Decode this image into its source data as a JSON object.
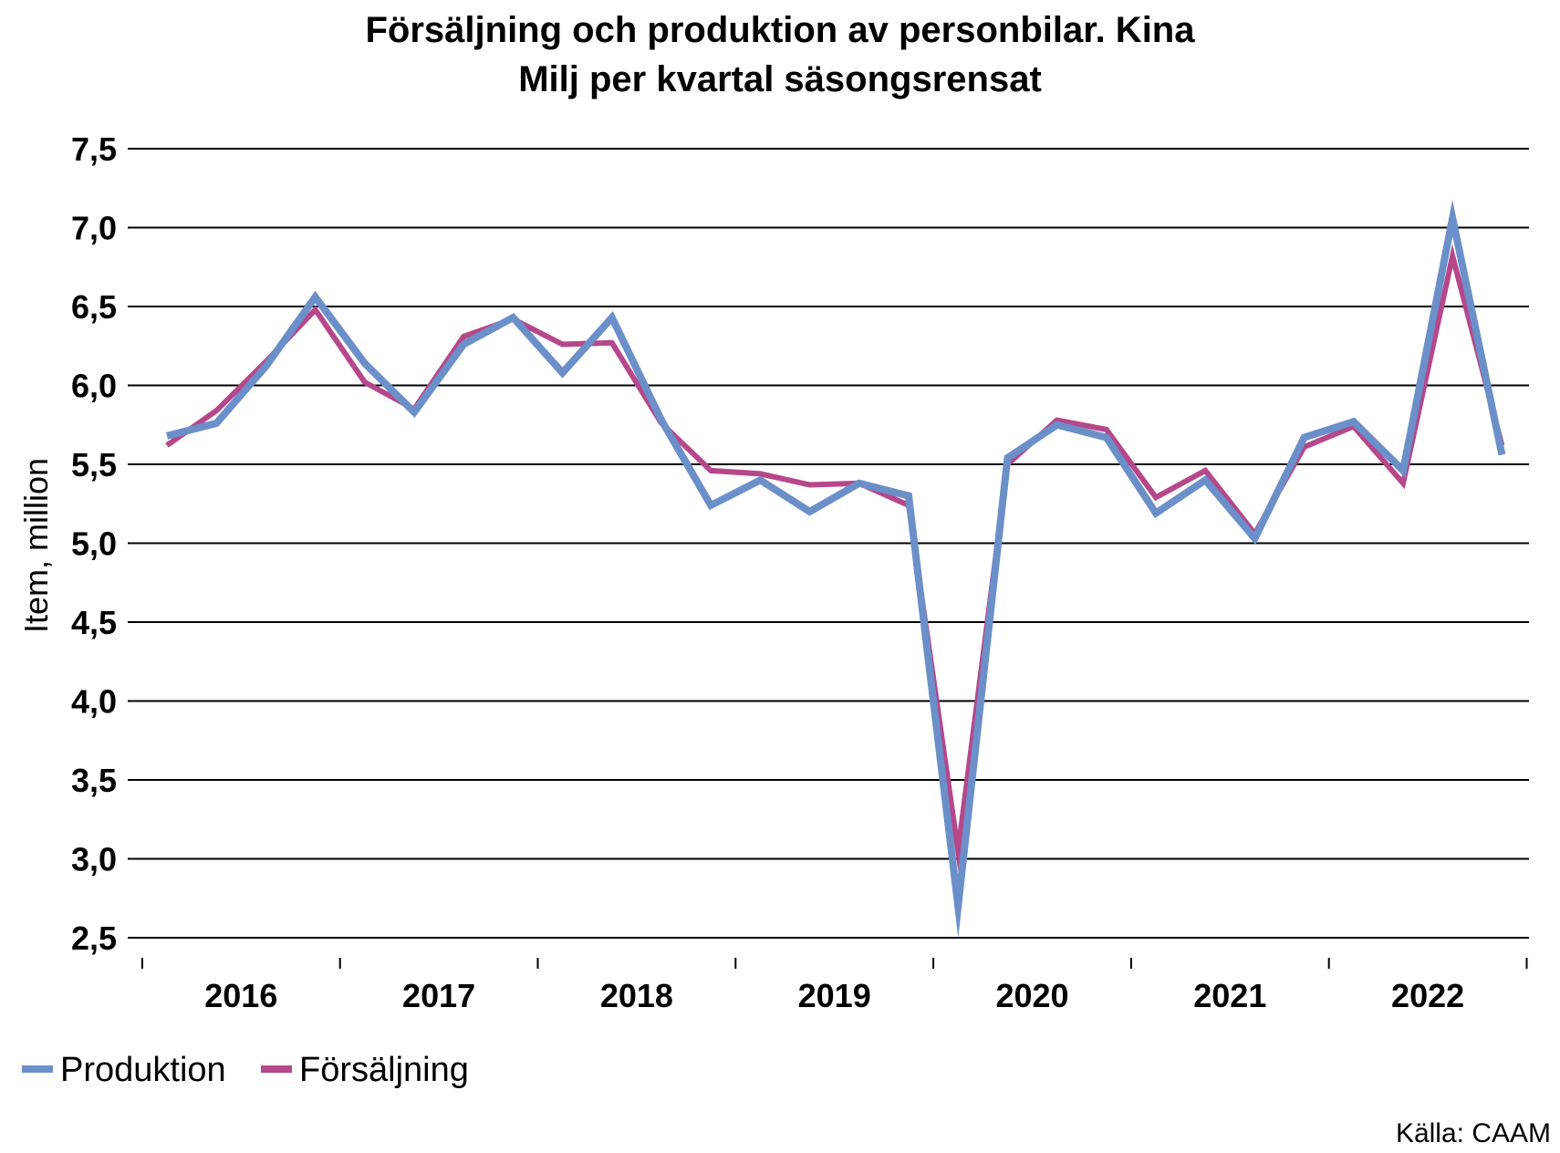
{
  "chart_data": {
    "type": "line",
    "title": "Försäljning och produktion av personbilar. Kina",
    "subtitle": "Milj per kvartal säsongsrensat",
    "ylabel": "Item, million",
    "xlabel": "",
    "ylim": [
      2.5,
      7.5
    ],
    "yticks": [
      "2,5",
      "3,0",
      "3,5",
      "4,0",
      "4,5",
      "5,0",
      "5,5",
      "6,0",
      "6,5",
      "7,0",
      "7,5"
    ],
    "year_labels": [
      "2016",
      "2017",
      "2018",
      "2019",
      "2020",
      "2021",
      "2022"
    ],
    "grid": true,
    "legend_position": "bottom-left",
    "x": [
      "2016Q1",
      "2016Q2",
      "2016Q3",
      "2016Q4",
      "2017Q1",
      "2017Q2",
      "2017Q3",
      "2017Q4",
      "2018Q1",
      "2018Q2",
      "2018Q3",
      "2018Q4",
      "2019Q1",
      "2019Q2",
      "2019Q3",
      "2019Q4",
      "2020Q1",
      "2020Q2",
      "2020Q3",
      "2020Q4",
      "2021Q1",
      "2021Q2",
      "2021Q3",
      "2021Q4",
      "2022Q1",
      "2022Q2",
      "2022Q3",
      "2022Q4"
    ],
    "series": [
      {
        "name": "Produktion",
        "color": "#6b8fc9",
        "values": [
          5.68,
          5.76,
          6.12,
          6.56,
          6.14,
          5.83,
          6.26,
          6.43,
          6.08,
          6.43,
          5.78,
          5.24,
          5.4,
          5.2,
          5.38,
          5.3,
          2.7,
          5.54,
          5.75,
          5.67,
          5.19,
          5.4,
          5.03,
          5.67,
          5.77,
          5.46,
          7.06,
          5.56
        ]
      },
      {
        "name": "Försäljning",
        "color": "#b5478a",
        "values": [
          5.62,
          5.84,
          6.15,
          6.48,
          6.02,
          5.85,
          6.31,
          6.42,
          6.26,
          6.27,
          5.76,
          5.46,
          5.44,
          5.37,
          5.38,
          5.24,
          3.05,
          5.5,
          5.78,
          5.72,
          5.29,
          5.46,
          5.06,
          5.61,
          5.74,
          5.38,
          6.82,
          5.62
        ]
      }
    ]
  },
  "source": "Källa: CAAM"
}
